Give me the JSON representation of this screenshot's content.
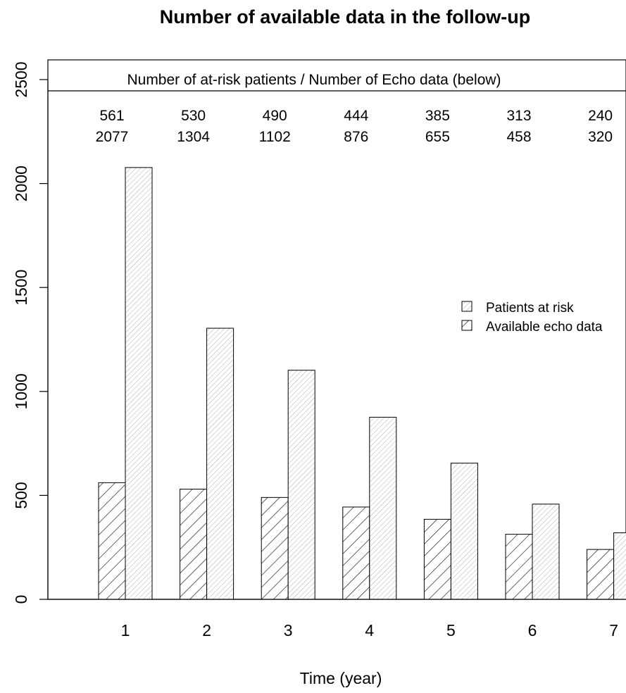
{
  "chart_data": {
    "type": "bar",
    "title": "Number of available data in the follow-up",
    "xlabel": "Time (year)",
    "ylabel": "",
    "categories": [
      "1",
      "2",
      "3",
      "4",
      "5",
      "6",
      "7"
    ],
    "series": [
      {
        "name": "Available echo data",
        "values": [
          561,
          530,
          490,
          444,
          385,
          313,
          240
        ],
        "hatch": "dense"
      },
      {
        "name": "Patients at risk",
        "values": [
          2077,
          1304,
          1102,
          876,
          655,
          458,
          320
        ],
        "hatch": "light"
      }
    ],
    "ylim": [
      0,
      2600
    ],
    "yticks": [
      "0",
      "500",
      "1000",
      "1500",
      "2000",
      "2500"
    ],
    "grid": false,
    "legend_position": "right",
    "legend": [
      {
        "label": "Patients at risk",
        "hatch": "light"
      },
      {
        "label": "Available echo data",
        "hatch": "dense"
      }
    ],
    "annotation": {
      "header": "Number of at-risk patients / Number of Echo data (below)",
      "row1": [
        "561",
        "530",
        "490",
        "444",
        "385",
        "313",
        "240"
      ],
      "row2": [
        "2077",
        "1304",
        "1102",
        "876",
        "655",
        "458",
        "320"
      ]
    },
    "colors": {
      "bar_fill": "#ffffff",
      "hatch_light": "#b0b0b0",
      "hatch_dense": "#000000",
      "stroke": "#000000"
    }
  }
}
